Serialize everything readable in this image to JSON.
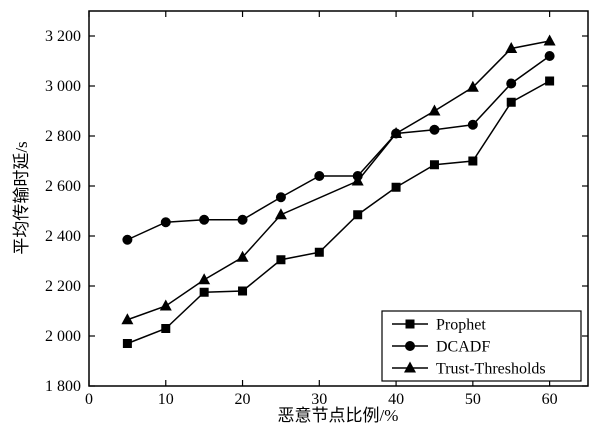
{
  "chart_data": {
    "type": "line",
    "title": "",
    "xlabel": "恶意节点比例/%",
    "ylabel": "平均传输时延/s",
    "xlim": [
      0,
      65
    ],
    "ylim": [
      1800,
      3300
    ],
    "xticks": [
      0,
      10,
      20,
      30,
      40,
      50,
      60
    ],
    "yticks": [
      1800,
      2000,
      2200,
      2400,
      2600,
      2800,
      3000,
      3200
    ],
    "x_tick_labels": [
      "0",
      "10",
      "20",
      "30",
      "40",
      "50",
      "60"
    ],
    "y_tick_labels": [
      "1 800",
      "2 000",
      "2 200",
      "2 400",
      "2 600",
      "2 800",
      "3 000",
      "3 200"
    ],
    "x": [
      5,
      10,
      15,
      20,
      25,
      30,
      35,
      40,
      45,
      50,
      55,
      60
    ],
    "series": [
      {
        "name": "Prophet",
        "marker": "square",
        "values": [
          1970,
          2030,
          2175,
          2180,
          2305,
          2335,
          2485,
          2595,
          2685,
          2700,
          2935,
          3020
        ]
      },
      {
        "name": "DCADF",
        "marker": "circle",
        "values": [
          2385,
          2455,
          2465,
          2465,
          2555,
          2640,
          2640,
          2810,
          2825,
          2845,
          3010,
          3120
        ]
      },
      {
        "name": "Trust-Thresholds",
        "marker": "triangle",
        "values": [
          2065,
          2120,
          2225,
          2315,
          2485,
          null,
          2620,
          2810,
          2900,
          2995,
          3150,
          3180
        ]
      }
    ],
    "grid": false,
    "legend_position": "bottom-right",
    "color": "#000000"
  }
}
